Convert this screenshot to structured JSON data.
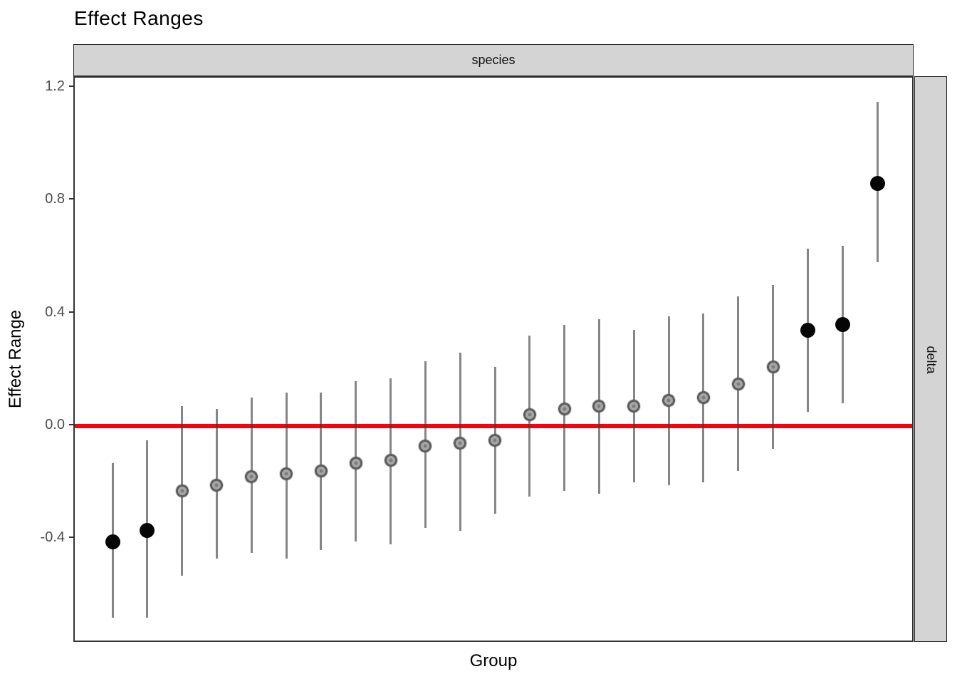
{
  "title": "Effect Ranges",
  "facet": {
    "column_label": "species",
    "row_label": "delta"
  },
  "axes": {
    "x_title": "Group",
    "y_title": "Effect Range"
  },
  "colors": {
    "reference_line": "#fb000a",
    "strip_fill": "#d4d4d4",
    "panel_border": "#333333",
    "significant_point": "#050505",
    "nonsignificant_point": "#a6a6a6",
    "interval_line": "#868686",
    "tick_label": "#4d4d4d"
  },
  "chart_data": {
    "type": "scatter",
    "subtype": "pointrange-caterpillar",
    "title": "Effect Ranges",
    "xlabel": "Group",
    "ylabel": "Effect Range",
    "facet_column": "species",
    "facet_row": "delta",
    "grid": false,
    "ylim": [
      -0.77,
      1.235
    ],
    "yticks": [
      1.2,
      0.8,
      0.4,
      0.0,
      -0.4
    ],
    "x_tick_labels_shown": false,
    "reference_line_y": 0.0,
    "n_groups": 23,
    "points": [
      {
        "group": 1,
        "estimate": -0.41,
        "lower": -0.68,
        "upper": -0.13,
        "significant": true
      },
      {
        "group": 2,
        "estimate": -0.37,
        "lower": -0.68,
        "upper": -0.05,
        "significant": true
      },
      {
        "group": 3,
        "estimate": -0.23,
        "lower": -0.53,
        "upper": 0.07,
        "significant": false
      },
      {
        "group": 4,
        "estimate": -0.21,
        "lower": -0.47,
        "upper": 0.06,
        "significant": false
      },
      {
        "group": 5,
        "estimate": -0.18,
        "lower": -0.45,
        "upper": 0.1,
        "significant": false
      },
      {
        "group": 6,
        "estimate": -0.17,
        "lower": -0.47,
        "upper": 0.12,
        "significant": false
      },
      {
        "group": 7,
        "estimate": -0.16,
        "lower": -0.44,
        "upper": 0.12,
        "significant": false
      },
      {
        "group": 8,
        "estimate": -0.13,
        "lower": -0.41,
        "upper": 0.16,
        "significant": false
      },
      {
        "group": 9,
        "estimate": -0.12,
        "lower": -0.42,
        "upper": 0.17,
        "significant": false
      },
      {
        "group": 10,
        "estimate": -0.07,
        "lower": -0.36,
        "upper": 0.23,
        "significant": false
      },
      {
        "group": 11,
        "estimate": -0.06,
        "lower": -0.37,
        "upper": 0.26,
        "significant": false
      },
      {
        "group": 12,
        "estimate": -0.05,
        "lower": -0.31,
        "upper": 0.21,
        "significant": false
      },
      {
        "group": 13,
        "estimate": 0.04,
        "lower": -0.25,
        "upper": 0.32,
        "significant": false
      },
      {
        "group": 14,
        "estimate": 0.06,
        "lower": -0.23,
        "upper": 0.36,
        "significant": false
      },
      {
        "group": 15,
        "estimate": 0.07,
        "lower": -0.24,
        "upper": 0.38,
        "significant": false
      },
      {
        "group": 16,
        "estimate": 0.07,
        "lower": -0.2,
        "upper": 0.34,
        "significant": false
      },
      {
        "group": 17,
        "estimate": 0.09,
        "lower": -0.21,
        "upper": 0.39,
        "significant": false
      },
      {
        "group": 18,
        "estimate": 0.1,
        "lower": -0.2,
        "upper": 0.4,
        "significant": false
      },
      {
        "group": 19,
        "estimate": 0.15,
        "lower": -0.16,
        "upper": 0.46,
        "significant": false
      },
      {
        "group": 20,
        "estimate": 0.21,
        "lower": -0.08,
        "upper": 0.5,
        "significant": false
      },
      {
        "group": 21,
        "estimate": 0.34,
        "lower": 0.05,
        "upper": 0.63,
        "significant": true
      },
      {
        "group": 22,
        "estimate": 0.36,
        "lower": 0.08,
        "upper": 0.64,
        "significant": true
      },
      {
        "group": 23,
        "estimate": 0.86,
        "lower": 0.58,
        "upper": 1.15,
        "significant": true
      }
    ]
  }
}
